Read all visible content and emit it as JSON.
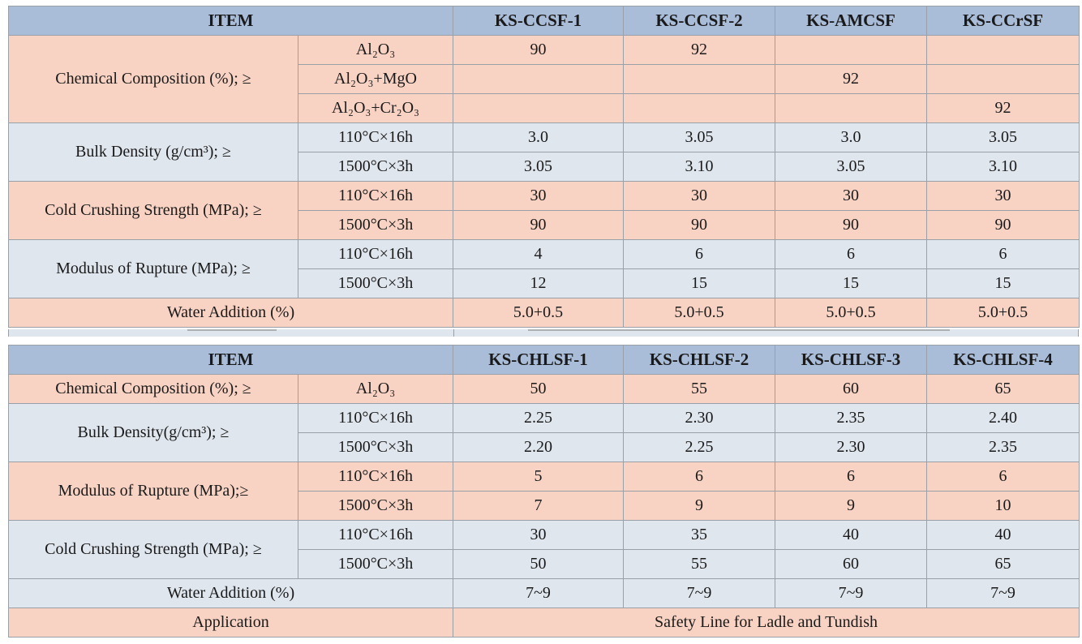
{
  "table1": {
    "header": {
      "item": "ITEM",
      "cols": [
        "KS-CCSF-1",
        "KS-CCSF-2",
        "KS-AMCSF",
        "KS-CCrSF"
      ]
    },
    "chem": {
      "label": "Chemical Composition (%); ≥",
      "rows": [
        {
          "sub": "Al₂O₃",
          "vals": [
            "90",
            "92",
            "",
            ""
          ]
        },
        {
          "sub": "Al₂O₃+MgO",
          "vals": [
            "",
            "",
            "92",
            ""
          ]
        },
        {
          "sub": "Al₂O₃+Cr₂O₃",
          "vals": [
            "",
            "",
            "",
            "92"
          ]
        }
      ]
    },
    "bulk": {
      "label": "Bulk Density (g/cm³); ≥",
      "rows": [
        {
          "sub": "110°C×16h",
          "vals": [
            "3.0",
            "3.05",
            "3.0",
            "3.05"
          ]
        },
        {
          "sub": "1500°C×3h",
          "vals": [
            "3.05",
            "3.10",
            "3.05",
            "3.10"
          ]
        }
      ]
    },
    "ccs": {
      "label": "Cold Crushing Strength (MPa); ≥",
      "rows": [
        {
          "sub": "110°C×16h",
          "vals": [
            "30",
            "30",
            "30",
            "30"
          ]
        },
        {
          "sub": "1500°C×3h",
          "vals": [
            "90",
            "90",
            "90",
            "90"
          ]
        }
      ]
    },
    "mor": {
      "label": "Modulus of Rupture (MPa); ≥",
      "rows": [
        {
          "sub": "110°C×16h",
          "vals": [
            "4",
            "6",
            "6",
            "6"
          ]
        },
        {
          "sub": "1500°C×3h",
          "vals": [
            "12",
            "15",
            "15",
            "15"
          ]
        }
      ]
    },
    "water": {
      "label": "Water Addition (%)",
      "vals": [
        "5.0+0.5",
        "5.0+0.5",
        "5.0+0.5",
        "5.0+0.5"
      ]
    }
  },
  "table2": {
    "header": {
      "item": "ITEM",
      "cols": [
        "KS-CHLSF-1",
        "KS-CHLSF-2",
        "KS-CHLSF-3",
        "KS-CHLSF-4"
      ]
    },
    "chem": {
      "label": "Chemical Composition (%); ≥",
      "sub": "Al₂O₃",
      "vals": [
        "50",
        "55",
        "60",
        "65"
      ]
    },
    "bulk": {
      "label": "Bulk Density(g/cm³); ≥",
      "rows": [
        {
          "sub": "110°C×16h",
          "vals": [
            "2.25",
            "2.30",
            "2.35",
            "2.40"
          ]
        },
        {
          "sub": "1500°C×3h",
          "vals": [
            "2.20",
            "2.25",
            "2.30",
            "2.35"
          ]
        }
      ]
    },
    "mor": {
      "label": "Modulus of Rupture (MPa);≥",
      "rows": [
        {
          "sub": "110°C×16h",
          "vals": [
            "5",
            "6",
            "6",
            "6"
          ]
        },
        {
          "sub": "1500°C×3h",
          "vals": [
            "7",
            "9",
            "9",
            "10"
          ]
        }
      ]
    },
    "ccs": {
      "label": "Cold Crushing Strength (MPa); ≥",
      "rows": [
        {
          "sub": "110°C×16h",
          "vals": [
            "30",
            "35",
            "40",
            "40"
          ]
        },
        {
          "sub": "1500°C×3h",
          "vals": [
            "50",
            "55",
            "60",
            "65"
          ]
        }
      ]
    },
    "water": {
      "label": "Water Addition (%)",
      "vals": [
        "7~9",
        "7~9",
        "7~9",
        "7~9"
      ]
    },
    "application": {
      "label": "Application",
      "value": "Safety Line for Ladle and Tundish"
    }
  }
}
